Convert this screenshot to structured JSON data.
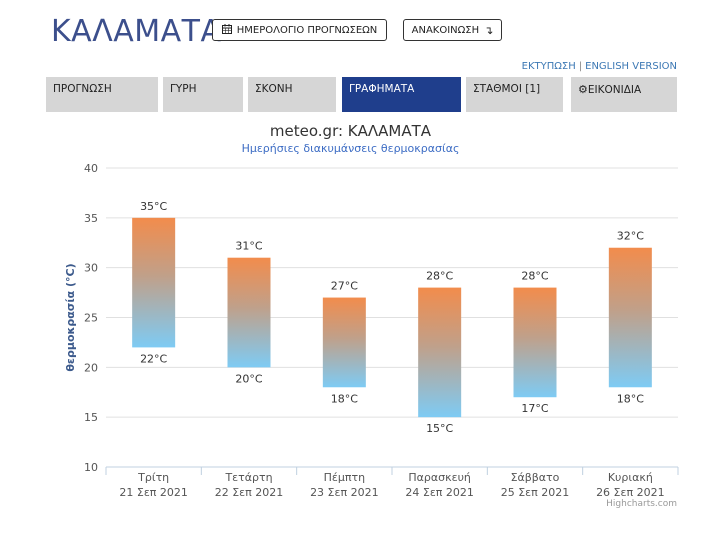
{
  "header": {
    "title": "ΚΑΛΑΜΑΤΑ",
    "calendar_button": "ΗΜΕΡΟΛΟΓΙΟ ΠΡΟΓΝΩΣΕΩΝ",
    "announcement_button": "ΑΝΑΚΟΙΝΩΣΗ",
    "print_link": "ΕΚΤΥΠΩΣΗ",
    "separator": "|",
    "english_link": "ENGLISH VERSION"
  },
  "tabs": [
    {
      "label": "ΠΡΟΓΝΩΣΗ",
      "active": false
    },
    {
      "label": "ΓΥΡΗ",
      "active": false
    },
    {
      "label": "ΣΚΟΝΗ",
      "active": false
    },
    {
      "label": "ΓΡΑΦΗΜΑΤΑ",
      "active": true
    },
    {
      "label": "ΣΤΑΘΜΟΙ [1]",
      "active": false
    },
    {
      "label": "ΕΙΚΟΝΙΔΙΑ",
      "active": false
    }
  ],
  "icons": {
    "calendar": "calendar-icon",
    "announcement": "arrow-turn-down-icon",
    "widgets": "gear-icon"
  },
  "colors": {
    "title": "#3c4f8c",
    "active_tab": "#1f3e8c",
    "tab": "#d6d6d6",
    "bar_top": "#f28c4c",
    "bar_bottom": "#7ecbf4",
    "link": "#3c78b4"
  },
  "chart_data": {
    "type": "bar",
    "title": "meteo.gr: ΚΑΛΑΜΑΤΑ",
    "subtitle": "Ημερήσιες διακυμάνσεις θερμοκρασίας",
    "ylabel": "θερμοκρασία (°C)",
    "ylim": [
      10,
      40
    ],
    "yticks": [
      10,
      15,
      20,
      25,
      30,
      35,
      40
    ],
    "grid": true,
    "categories": [
      {
        "day": "Τρίτη",
        "date": "21 Σεπ 2021"
      },
      {
        "day": "Τετάρτη",
        "date": "22 Σεπ 2021"
      },
      {
        "day": "Πέμπτη",
        "date": "23 Σεπ 2021"
      },
      {
        "day": "Παρασκευή",
        "date": "24 Σεπ 2021"
      },
      {
        "day": "Σάββατο",
        "date": "25 Σεπ 2021"
      },
      {
        "day": "Κυριακή",
        "date": "26 Σεπ 2021"
      }
    ],
    "series": [
      {
        "low": 22,
        "high": 35,
        "low_label": "22°C",
        "high_label": "35°C"
      },
      {
        "low": 20,
        "high": 31,
        "low_label": "20°C",
        "high_label": "31°C"
      },
      {
        "low": 18,
        "high": 27,
        "low_label": "18°C",
        "high_label": "27°C"
      },
      {
        "low": 15,
        "high": 28,
        "low_label": "15°C",
        "high_label": "28°C"
      },
      {
        "low": 17,
        "high": 28,
        "low_label": "17°C",
        "high_label": "28°C"
      },
      {
        "low": 18,
        "high": 32,
        "low_label": "18°C",
        "high_label": "32°C"
      }
    ],
    "credits": "Highcharts.com"
  }
}
